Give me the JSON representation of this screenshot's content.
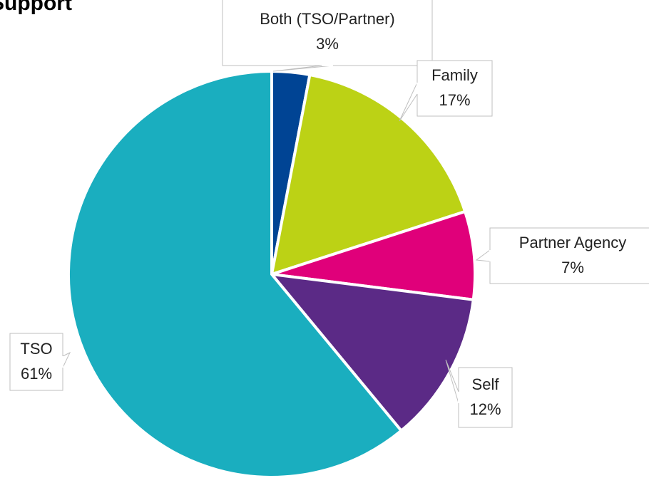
{
  "chart_data": {
    "type": "pie",
    "title": "Support",
    "categories": [
      "Both (TSO/Partner)",
      "Family",
      "Partner Agency",
      "Self",
      "TSO"
    ],
    "values": [
      3,
      17,
      7,
      12,
      61
    ],
    "value_labels": [
      "3%",
      "17%",
      "7%",
      "12%",
      "61%"
    ],
    "colors": [
      "#004494",
      "#bcd215",
      "#e0007a",
      "#5b2a86",
      "#1aaebf"
    ]
  }
}
